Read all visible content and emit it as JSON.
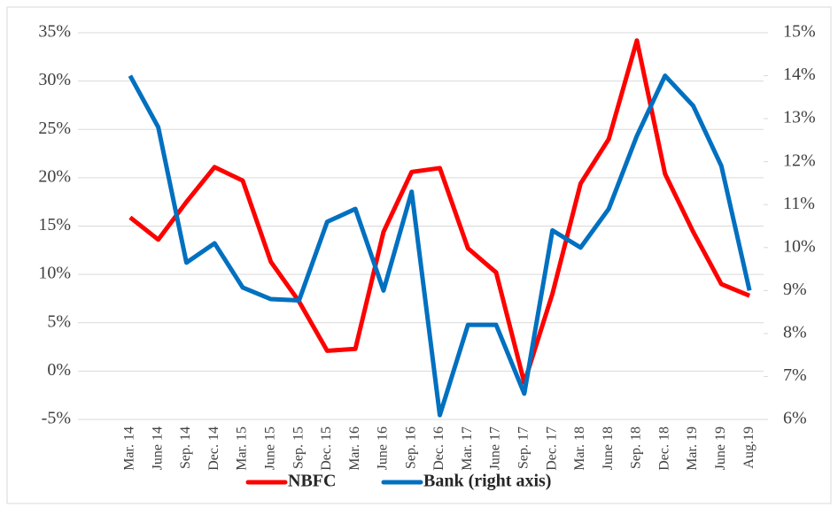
{
  "chart_data": {
    "type": "line",
    "categories": [
      "Mar. 14",
      "June 14",
      "Sep. 14",
      "Dec. 14",
      "Mar. 15",
      "June 15",
      "Sep. 15",
      "Dec. 15",
      "Mar. 16",
      "June 16",
      "Sep. 16",
      "Dec. 16",
      "Mar. 17",
      "June 17",
      "Sep. 17",
      "Dec. 17",
      "Mar. 18",
      "June 18",
      "Sep. 18",
      "Dec. 18",
      "Mar. 19",
      "June 19",
      "Aug.19"
    ],
    "series": [
      {
        "name": "NBFC",
        "color": "#ff0000",
        "values": [
          15.9,
          13.6,
          17.5,
          21.1,
          19.7,
          11.3,
          7.2,
          2.1,
          2.3,
          14.4,
          20.6,
          21.0,
          12.7,
          10.2,
          -1.2,
          8.0,
          19.4,
          24.0,
          34.2,
          20.4,
          14.4,
          9.0,
          7.8
        ]
      },
      {
        "name": "Bank (right axis)",
        "color": "#0070c0",
        "axis": "y2",
        "values": [
          14.0,
          12.8,
          9.65,
          10.1,
          9.07,
          8.8,
          8.77,
          10.6,
          10.9,
          9.0,
          11.3,
          6.1,
          8.2,
          8.2,
          6.6,
          10.4,
          10.0,
          10.9,
          12.6,
          14.0,
          13.3,
          11.9,
          9.0
        ]
      }
    ],
    "ylim": [
      -5,
      35
    ],
    "yticks": [
      {
        "value": -5,
        "label": "-5%"
      },
      {
        "value": 0,
        "label": "0%"
      },
      {
        "value": 5,
        "label": "5%"
      },
      {
        "value": 10,
        "label": "10%"
      },
      {
        "value": 15,
        "label": "15%"
      },
      {
        "value": 20,
        "label": "20%"
      },
      {
        "value": 25,
        "label": "25%"
      },
      {
        "value": 30,
        "label": "30%"
      },
      {
        "value": 35,
        "label": "35%"
      }
    ],
    "y2lim": [
      6,
      15
    ],
    "y2ticks": [
      {
        "value": 6,
        "label": "6%"
      },
      {
        "value": 7,
        "label": "7%"
      },
      {
        "value": 8,
        "label": "8%"
      },
      {
        "value": 9,
        "label": "9%"
      },
      {
        "value": 10,
        "label": "10%"
      },
      {
        "value": 11,
        "label": "11%"
      },
      {
        "value": 12,
        "label": "12%"
      },
      {
        "value": 13,
        "label": "13%"
      },
      {
        "value": 14,
        "label": "14%"
      },
      {
        "value": 15,
        "label": "15%"
      }
    ],
    "grid": true,
    "legend": "bottom"
  }
}
